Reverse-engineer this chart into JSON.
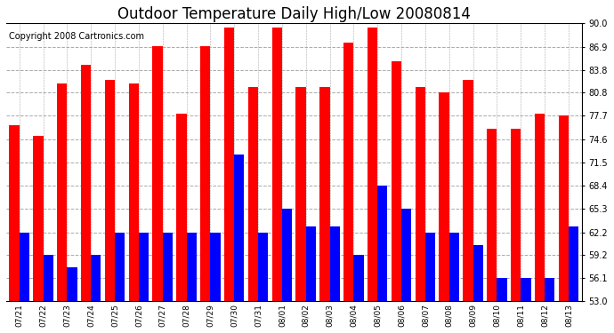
{
  "title": "Outdoor Temperature Daily High/Low 20080814",
  "copyright": "Copyright 2008 Cartronics.com",
  "dates": [
    "07/21",
    "07/22",
    "07/23",
    "07/24",
    "07/25",
    "07/26",
    "07/27",
    "07/28",
    "07/29",
    "07/30",
    "07/31",
    "08/01",
    "08/02",
    "08/03",
    "08/04",
    "08/05",
    "08/06",
    "08/07",
    "08/08",
    "08/09",
    "08/10",
    "08/11",
    "08/12",
    "08/13"
  ],
  "highs": [
    76.5,
    75.0,
    82.0,
    84.5,
    82.5,
    82.0,
    87.0,
    78.0,
    87.0,
    89.5,
    81.5,
    89.5,
    81.5,
    81.5,
    87.5,
    89.5,
    85.0,
    81.5,
    80.8,
    82.5,
    76.0,
    76.0,
    78.0,
    77.7
  ],
  "lows": [
    62.2,
    59.2,
    57.5,
    59.2,
    62.2,
    62.2,
    62.2,
    62.2,
    62.2,
    72.5,
    62.2,
    65.3,
    63.0,
    63.0,
    59.2,
    68.4,
    65.3,
    62.2,
    62.2,
    60.5,
    56.1,
    56.1,
    56.1,
    63.0
  ],
  "high_color": "#FF0000",
  "low_color": "#0000FF",
  "bar_width": 0.42,
  "ylim": [
    53.0,
    90.0
  ],
  "yticks": [
    53.0,
    56.1,
    59.2,
    62.2,
    65.3,
    68.4,
    71.5,
    74.6,
    77.7,
    80.8,
    83.8,
    86.9,
    90.0
  ],
  "grid_color": "#aaaaaa",
  "background_color": "#ffffff",
  "plot_bg_color": "#ffffff",
  "title_fontsize": 12,
  "copyright_fontsize": 7,
  "tick_fontsize": 7,
  "xtick_fontsize": 6.5
}
